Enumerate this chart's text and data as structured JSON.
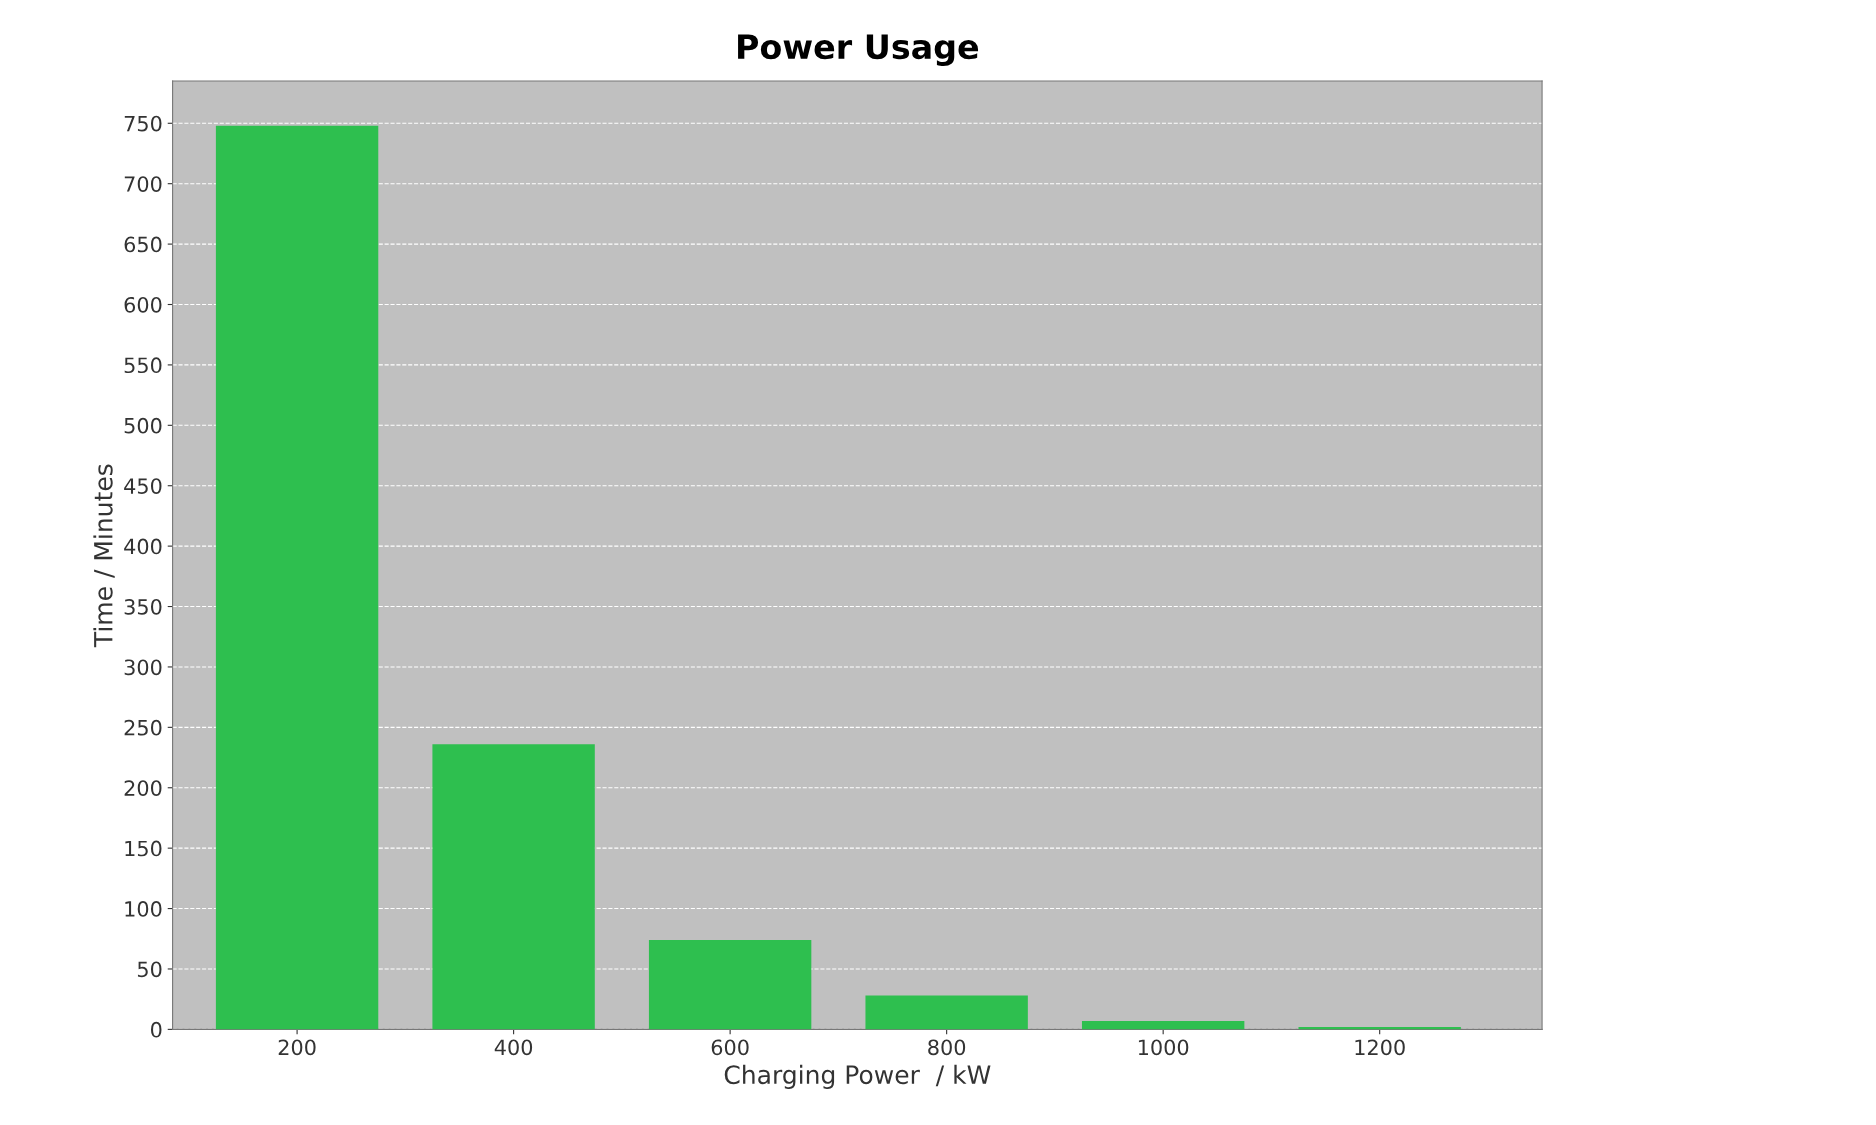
{
  "chart_data": {
    "type": "bar",
    "title": "Power Usage",
    "xlabel": "Charging Power  / kW",
    "ylabel": "Time / Minutes",
    "x": [
      200,
      400,
      600,
      800,
      1000,
      1200
    ],
    "values": [
      748,
      236,
      74,
      28,
      7,
      2
    ],
    "color": "#2ebf4f",
    "xlim": [
      85,
      1350
    ],
    "xticks": [
      200,
      400,
      600,
      800,
      1000,
      1200
    ],
    "ylim": [
      0,
      785
    ],
    "yticks": [
      0,
      50,
      100,
      150,
      200,
      250,
      300,
      350,
      400,
      450,
      500,
      550,
      600,
      650,
      700,
      750
    ],
    "grid": "y",
    "legend": false
  }
}
